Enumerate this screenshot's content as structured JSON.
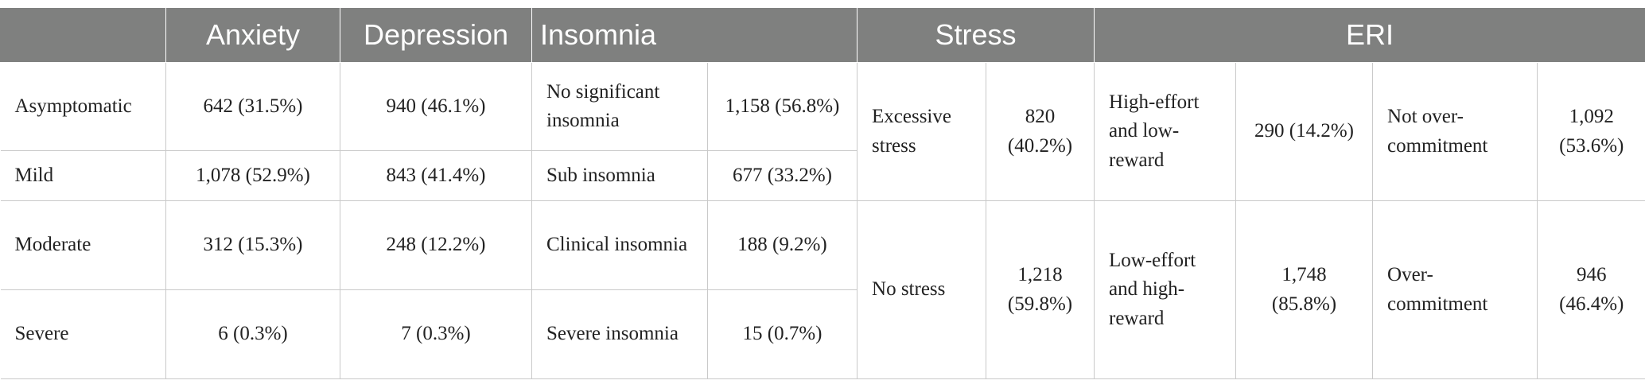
{
  "header": {
    "blank": "",
    "anxiety": "Anxiety",
    "depression": "Depression",
    "insomnia": "Insomnia",
    "stress": "Stress",
    "eri": "ERI"
  },
  "rows": [
    {
      "label": "Asymptomatic",
      "anxiety": "642 (31.5%)",
      "depression": "940 (46.1%)",
      "insomnia_category": "No significant insomnia",
      "insomnia_value": "1,158 (56.8%)"
    },
    {
      "label": "Mild",
      "anxiety": "1,078 (52.9%)",
      "depression": "843 (41.4%)",
      "insomnia_category": "Sub insomnia",
      "insomnia_value": "677 (33.2%)"
    },
    {
      "label": "Moderate",
      "anxiety": "312 (15.3%)",
      "depression": "248 (12.2%)",
      "insomnia_category": "Clinical insomnia",
      "insomnia_value": "188 (9.2%)"
    },
    {
      "label": "Severe",
      "anxiety": "6 (0.3%)",
      "depression": "7 (0.3%)",
      "insomnia_category": "Severe insomnia",
      "insomnia_value": "15 (0.7%)"
    }
  ],
  "stress": [
    {
      "category": "Excessive stress",
      "value": "820 (40.2%)"
    },
    {
      "category": "No stress",
      "value": "1,218 (59.8%)"
    }
  ],
  "eri": [
    {
      "effort_category": "High-effort and low-reward",
      "effort_value": "290 (14.2%)",
      "commitment_category": "Not over-commitment",
      "commitment_value": "1,092 (53.6%)"
    },
    {
      "effort_category": "Low-effort and high-reward",
      "effort_value": "1,748 (85.8%)",
      "commitment_category": "Over-commitment",
      "commitment_value": "946 (46.4%)"
    }
  ],
  "colors": {
    "header_background": "#7f807f",
    "header_text": "#ffffff",
    "body_text": "#222222",
    "grid_line": "#c9c9c9"
  }
}
